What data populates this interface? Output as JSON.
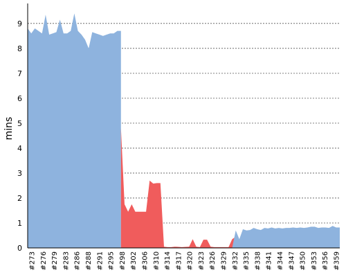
{
  "chart_data": {
    "type": "area",
    "title": "",
    "xlabel": "",
    "ylabel": "mins",
    "ylim": [
      0,
      9.8
    ],
    "yticks": [
      0,
      1,
      2,
      3,
      4,
      5,
      6,
      7,
      8,
      9
    ],
    "grid": "horizontal dashed",
    "legend": "none",
    "x_first": 273,
    "x_last": 360,
    "x_tick_labels": [
      "#273",
      "#276",
      "#279",
      "#283",
      "#286",
      "#288",
      "#291",
      "#295",
      "#298",
      "#302",
      "#306",
      "#310",
      "#314",
      "#317",
      "#320",
      "#323",
      "#326",
      "#329",
      "#332",
      "#335",
      "#338",
      "#341",
      "#344",
      "#347",
      "#350",
      "#353",
      "#356",
      "#359"
    ],
    "series": [
      {
        "color": "#8eb3de",
        "x": [
          273,
          274,
          275,
          276,
          277,
          278,
          279,
          280,
          281,
          282,
          283,
          284,
          285,
          286,
          287,
          288,
          289,
          290,
          291,
          292,
          293,
          294,
          295,
          296,
          297,
          298,
          299
        ],
        "values": [
          8.8,
          8.6,
          8.8,
          8.7,
          8.6,
          9.35,
          8.55,
          8.6,
          8.65,
          9.15,
          8.6,
          8.6,
          8.7,
          9.4,
          8.7,
          8.55,
          8.35,
          8.0,
          8.65,
          8.6,
          8.55,
          8.5,
          8.55,
          8.6,
          8.6,
          8.7,
          8.7
        ]
      },
      {
        "color": "#f05c5c",
        "x": [
          299,
          300,
          301,
          302,
          303,
          304,
          305,
          306,
          307,
          308,
          309,
          310,
          311,
          312,
          313,
          314,
          315,
          316,
          317,
          318,
          319,
          320,
          321,
          322,
          323,
          324,
          325,
          326,
          327,
          328,
          329,
          330,
          331,
          332,
          333,
          334
        ],
        "values": [
          4.8,
          1.75,
          1.45,
          1.75,
          1.45,
          1.45,
          1.45,
          1.45,
          2.7,
          2.58,
          2.6,
          2.6,
          0.05,
          0.03,
          0.03,
          0.05,
          0.04,
          0.03,
          0.04,
          0.05,
          0.35,
          0.05,
          0.03,
          0.33,
          0.33,
          0.05,
          0.03,
          0.03,
          0.03,
          0.03,
          0.03,
          0.35,
          0.45,
          0.25,
          0.03,
          0.3
        ]
      },
      {
        "color": "#8eb3de",
        "x": [
          330,
          331,
          332,
          333,
          334,
          335,
          336,
          337,
          338,
          339,
          340,
          341,
          342,
          343,
          344,
          345,
          346,
          347,
          348,
          349,
          350,
          351,
          352,
          353,
          354,
          355,
          356,
          357,
          358,
          359,
          360
        ],
        "values": [
          0.0,
          0.7,
          0.35,
          0.75,
          0.7,
          0.72,
          0.8,
          0.75,
          0.72,
          0.8,
          0.78,
          0.82,
          0.78,
          0.8,
          0.78,
          0.8,
          0.8,
          0.82,
          0.8,
          0.82,
          0.8,
          0.82,
          0.85,
          0.85,
          0.8,
          0.82,
          0.82,
          0.8,
          0.88,
          0.82,
          0.82
        ]
      }
    ]
  }
}
